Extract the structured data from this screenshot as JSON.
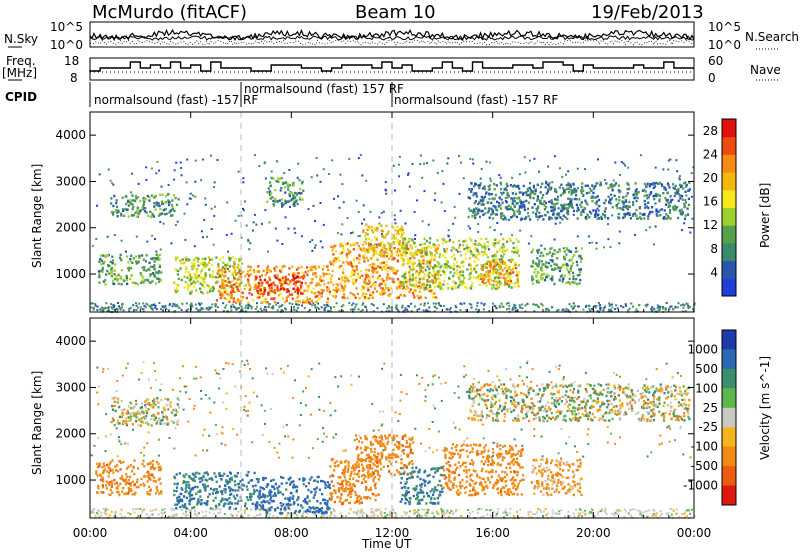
{
  "header": {
    "station": "McMurdo (fitACF)",
    "beam": "Beam 10",
    "date": "19/Feb/2013"
  },
  "noise_panel": {
    "left_label": "N.Sky",
    "right_label": "N.Search",
    "left_ticks": [
      "10^5",
      "10^0"
    ],
    "right_ticks": [
      "10^5",
      "10^0"
    ]
  },
  "freq_panel": {
    "left_label_1": "Freq.",
    "left_label_2": "[MHz]",
    "left_ticks": [
      "18",
      "8"
    ],
    "right_label": "Nave",
    "right_ticks": [
      "60",
      "0"
    ]
  },
  "cpid": {
    "label": "CPID",
    "segments": [
      {
        "text": "normalsound (fast) -157 RF",
        "start_hour": 0
      },
      {
        "text": "normalsound (fast) 157 RF",
        "start_hour": 6
      },
      {
        "text": "normalsound (fast) -157 RF",
        "start_hour": 12
      }
    ]
  },
  "colors": {
    "power": [
      "#1f3fd8",
      "#2a56b0",
      "#3b8a6a",
      "#55a04a",
      "#9bd12c",
      "#f5e81c",
      "#f6b70d",
      "#f58a14",
      "#ef4a10",
      "#e0100b"
    ],
    "velocity": [
      "#1c3aa8",
      "#2d68b4",
      "#3d8f6c",
      "#5cb84a",
      "#c9c9c2",
      "#f5b51a",
      "#f08a15",
      "#eb5c12",
      "#de1a0c"
    ]
  },
  "chart_data": [
    {
      "type": "heatmap",
      "name": "power",
      "xlabel": "Time UT",
      "ylabel": "Slant Range [km]",
      "xlim": [
        0,
        24
      ],
      "ylim": [
        180,
        4500
      ],
      "x_ticks": [
        "00:00",
        "04:00",
        "08:00",
        "12:00",
        "16:00",
        "20:00",
        "00:00"
      ],
      "x_tick_values": [
        0,
        4,
        8,
        12,
        16,
        20,
        24
      ],
      "y_ticks": [
        1000,
        2000,
        3000,
        4000
      ],
      "colorbar": {
        "label": "Power [dB]",
        "ticks": [
          "4",
          "8",
          "12",
          "16",
          "20",
          "24",
          "28"
        ],
        "range": [
          0,
          30
        ]
      },
      "regions": [
        {
          "t": [
            0.3,
            2.8
          ],
          "r": [
            800,
            1450
          ],
          "v": 10
        },
        {
          "t": [
            0.8,
            3.5
          ],
          "r": [
            2250,
            2750
          ],
          "v": 9
        },
        {
          "t": [
            3.3,
            6.0
          ],
          "r": [
            600,
            1400
          ],
          "v": 14
        },
        {
          "t": [
            5.0,
            9.5
          ],
          "r": [
            400,
            1200
          ],
          "v": 22
        },
        {
          "t": [
            6.5,
            8.5
          ],
          "r": [
            600,
            1000
          ],
          "v": 27
        },
        {
          "t": [
            7.0,
            8.5
          ],
          "r": [
            2500,
            3100
          ],
          "v": 9
        },
        {
          "t": [
            9.5,
            13.8
          ],
          "r": [
            500,
            1700
          ],
          "v": 21
        },
        {
          "t": [
            10.8,
            12.5
          ],
          "r": [
            1400,
            2100
          ],
          "v": 18
        },
        {
          "t": [
            12.3,
            17.0
          ],
          "r": [
            700,
            1800
          ],
          "v": 14
        },
        {
          "t": [
            15.5,
            17.0
          ],
          "r": [
            800,
            1300
          ],
          "v": 22
        },
        {
          "t": [
            17.5,
            19.5
          ],
          "r": [
            800,
            1600
          ],
          "v": 10
        },
        {
          "t": [
            15.0,
            23.8
          ],
          "r": [
            2200,
            3000
          ],
          "v": 7
        }
      ]
    },
    {
      "type": "heatmap",
      "name": "velocity",
      "xlabel": "Time UT",
      "ylabel": "Slant Range [km]",
      "xlim": [
        0,
        24
      ],
      "ylim": [
        180,
        4500
      ],
      "x_ticks": [
        "00:00",
        "04:00",
        "08:00",
        "12:00",
        "16:00",
        "20:00",
        "00:00"
      ],
      "x_tick_values": [
        0,
        4,
        8,
        12,
        16,
        20,
        24
      ],
      "y_ticks": [
        1000,
        2000,
        3000,
        4000
      ],
      "colorbar": {
        "label": "Velocity [m s^-1]",
        "ticks": [
          "1000",
          "500",
          "100",
          "25",
          "-25",
          "-100",
          "-500",
          "-1000"
        ]
      },
      "regions": [
        {
          "t": [
            0.2,
            2.8
          ],
          "r": [
            700,
            1450
          ],
          "v": -200
        },
        {
          "t": [
            0.8,
            3.5
          ],
          "r": [
            2200,
            2800
          ],
          "v": 0
        },
        {
          "t": [
            3.3,
            6.5
          ],
          "r": [
            400,
            1200
          ],
          "v": 300
        },
        {
          "t": [
            6.5,
            9.5
          ],
          "r": [
            300,
            1100
          ],
          "v": 400
        },
        {
          "t": [
            9.5,
            11.5
          ],
          "r": [
            500,
            1500
          ],
          "v": -200
        },
        {
          "t": [
            10.5,
            12.8
          ],
          "r": [
            1100,
            2000
          ],
          "v": -200
        },
        {
          "t": [
            12.3,
            14.0
          ],
          "r": [
            500,
            1300
          ],
          "v": 300
        },
        {
          "t": [
            14.0,
            17.2
          ],
          "r": [
            700,
            1800
          ],
          "v": -200
        },
        {
          "t": [
            17.5,
            19.5
          ],
          "r": [
            700,
            1500
          ],
          "v": -100
        },
        {
          "t": [
            15.0,
            23.8
          ],
          "r": [
            2300,
            3100
          ],
          "v": 0
        }
      ]
    }
  ]
}
